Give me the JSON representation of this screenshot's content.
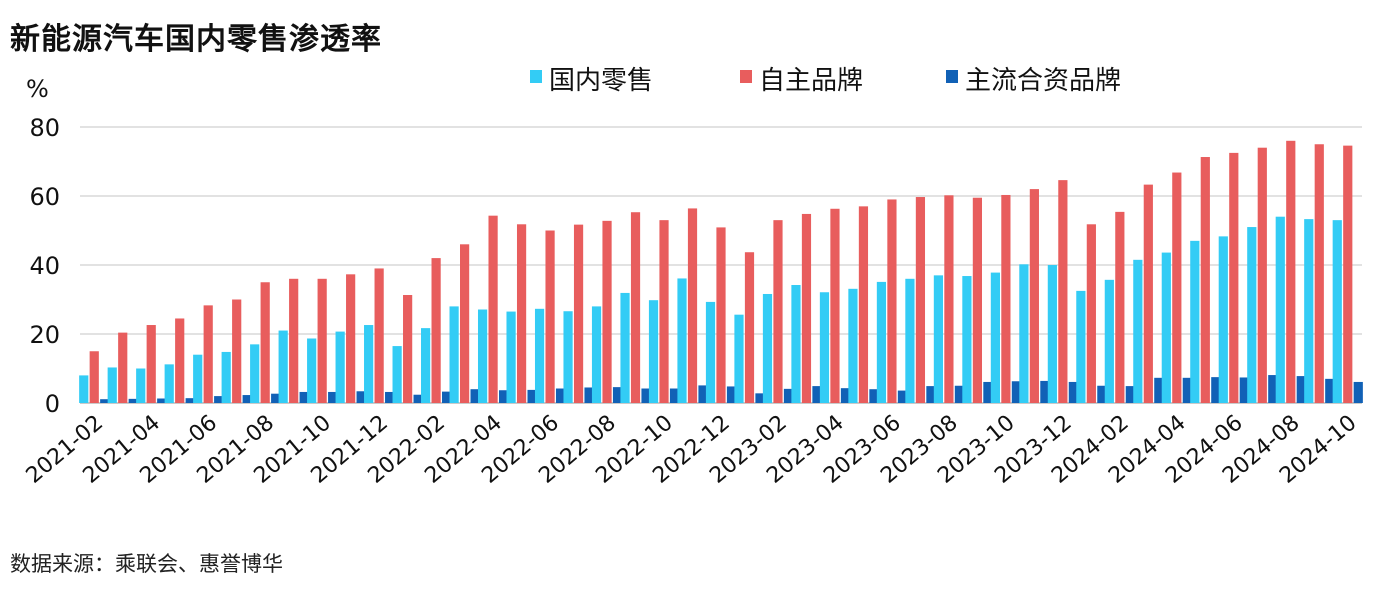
{
  "title": "新能源汽车国内零售渗透率",
  "source": "数据来源：乘联会、惠誉博华",
  "chart_data": {
    "type": "bar",
    "title": "新能源汽车国内零售渗透率",
    "ylabel": "%",
    "ylim": [
      0,
      80
    ],
    "yticks": [
      0,
      20,
      40,
      60,
      80
    ],
    "grid": true,
    "legend_position": "top",
    "categories": [
      "2021-02",
      "2021-03",
      "2021-04",
      "2021-05",
      "2021-06",
      "2021-07",
      "2021-08",
      "2021-09",
      "2021-10",
      "2021-11",
      "2021-12",
      "2022-01",
      "2022-02",
      "2022-03",
      "2022-04",
      "2022-05",
      "2022-06",
      "2022-07",
      "2022-08",
      "2022-09",
      "2022-10",
      "2022-11",
      "2022-12",
      "2023-01",
      "2023-02",
      "2023-03",
      "2023-04",
      "2023-05",
      "2023-06",
      "2023-07",
      "2023-08",
      "2023-09",
      "2023-10",
      "2023-11",
      "2023-12",
      "2024-01",
      "2024-02",
      "2024-03",
      "2024-04",
      "2024-05",
      "2024-06",
      "2024-07",
      "2024-08",
      "2024-09",
      "2024-10"
    ],
    "xtick_labels": [
      "2021-02",
      "2021-04",
      "2021-06",
      "2021-08",
      "2021-10",
      "2021-12",
      "2022-02",
      "2022-04",
      "2022-06",
      "2022-08",
      "2022-10",
      "2022-12",
      "2023-02",
      "2023-04",
      "2023-06",
      "2023-08",
      "2023-10",
      "2023-12",
      "2024-02",
      "2024-04",
      "2024-06",
      "2024-08",
      "2024-10"
    ],
    "series": [
      {
        "name": "国内零售",
        "color": "#33CCF5",
        "values": [
          8,
          10.3,
          10,
          11.2,
          14,
          14.8,
          17,
          21,
          18.7,
          20.7,
          22.6,
          16.5,
          21.7,
          28,
          27.1,
          26.5,
          27.3,
          26.6,
          28,
          31.9,
          29.8,
          36.1,
          29.3,
          25.6,
          31.6,
          34.2,
          32.1,
          33.1,
          35.1,
          36,
          37,
          36.8,
          37.8,
          40.2,
          40,
          32.5,
          35.7,
          41.5,
          43.6,
          47,
          48.3,
          51,
          54,
          53.3,
          53
        ]
      },
      {
        "name": "自主品牌",
        "color": "#E85D5D",
        "values": [
          15,
          20.4,
          22.6,
          24.5,
          28.3,
          30,
          35,
          36,
          36,
          37.3,
          39,
          31.3,
          42,
          46,
          54.3,
          51.8,
          50,
          51.7,
          52.8,
          55.3,
          53,
          56.4,
          50.9,
          43.7,
          53,
          54.8,
          56.3,
          57,
          59,
          59.7,
          60.2,
          59.5,
          60.3,
          62,
          64.6,
          51.8,
          55.4,
          63.3,
          66.8,
          71.3,
          72.5,
          74,
          76,
          75,
          74.6
        ]
      },
      {
        "name": "主流合资品牌",
        "color": "#1161B6",
        "values": [
          1.1,
          1.2,
          1.3,
          1.4,
          2,
          2.3,
          2.7,
          3.2,
          3.2,
          3.4,
          3.2,
          2.4,
          3.3,
          4,
          3.7,
          3.8,
          4.2,
          4.5,
          4.6,
          4.2,
          4.2,
          5.1,
          4.8,
          2.8,
          4.1,
          4.9,
          4.3,
          4,
          3.6,
          4.9,
          5,
          6.1,
          6.3,
          6.4,
          6.1,
          5,
          4.9,
          7.3,
          7.3,
          7.5,
          7.4,
          8.1,
          7.8,
          7,
          6.1
        ]
      }
    ]
  }
}
